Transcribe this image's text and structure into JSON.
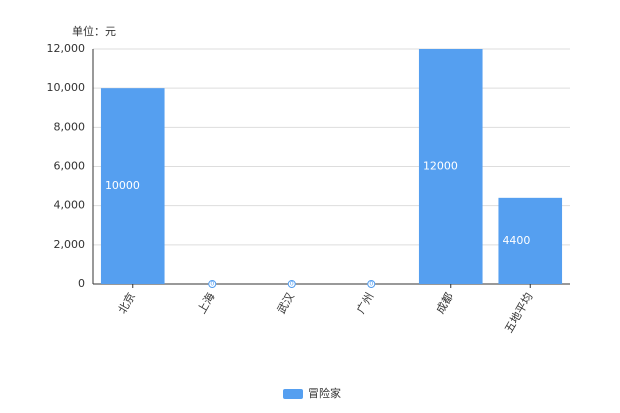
{
  "chart_data": {
    "type": "bar",
    "y_label": "单位：元",
    "categories": [
      "北京",
      "上海",
      "武汉",
      "广州",
      "成都",
      "五地平均"
    ],
    "series": [
      {
        "name": "冒险家",
        "color": "#559ff0",
        "values": [
          10000,
          0,
          0,
          0,
          12000,
          4400
        ]
      }
    ],
    "ylim": [
      0,
      12000
    ],
    "yticks": [
      0,
      {
        "value": 2000,
        "label": "2,000"
      },
      {
        "value": 4000,
        "label": "4,000"
      },
      {
        "value": 6000,
        "label": "6,000"
      },
      {
        "value": 8000,
        "label": "8,000"
      },
      {
        "value": 10000,
        "label": "10,000"
      },
      {
        "value": 12000,
        "label": "12,000"
      }
    ],
    "grid": true,
    "legend": "bottom"
  }
}
